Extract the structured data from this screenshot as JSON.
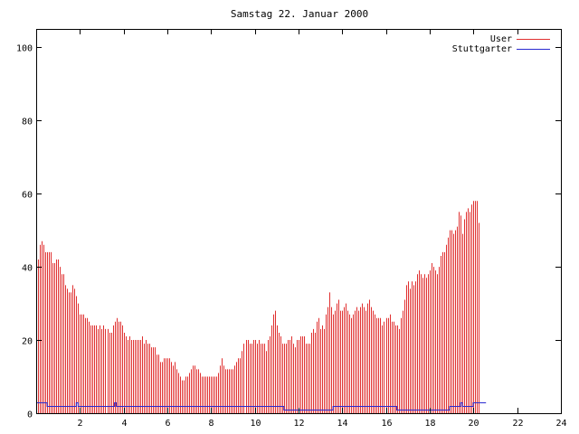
{
  "chart_data": {
    "type": "bar",
    "title": "Samstag 22. Januar 2000",
    "xlabel": "",
    "ylabel": "",
    "xlim": [
      0,
      24
    ],
    "ylim": [
      0,
      105
    ],
    "x_ticks": [
      2,
      4,
      6,
      8,
      10,
      12,
      14,
      16,
      18,
      20,
      22,
      24
    ],
    "y_ticks": [
      0,
      20,
      40,
      60,
      80,
      100
    ],
    "grid": false,
    "legend": "top-right",
    "x_step": 0.0833,
    "series": [
      {
        "name": "User",
        "style": "impulses",
        "color": "#e03030",
        "values": [
          40,
          42,
          46,
          47,
          46,
          44,
          44,
          44,
          44,
          41,
          41,
          42,
          42,
          40,
          38,
          38,
          35,
          34,
          33,
          33,
          35,
          34,
          32,
          30,
          27,
          27,
          27,
          26,
          26,
          25,
          24,
          24,
          24,
          24,
          23,
          24,
          23,
          24,
          23,
          23,
          22,
          22,
          24,
          25,
          26,
          25,
          25,
          24,
          22,
          21,
          20,
          21,
          20,
          20,
          20,
          20,
          20,
          20,
          21,
          19,
          20,
          19,
          19,
          18,
          18,
          18,
          16,
          16,
          14,
          14,
          15,
          15,
          15,
          15,
          14,
          13,
          14,
          12,
          11,
          10,
          9,
          9,
          10,
          10,
          11,
          12,
          13,
          13,
          12,
          12,
          11,
          10,
          10,
          10,
          10,
          10,
          10,
          10,
          10,
          10,
          11,
          13,
          15,
          13,
          12,
          12,
          12,
          12,
          12,
          13,
          14,
          15,
          15,
          17,
          19,
          20,
          20,
          19,
          19,
          20,
          20,
          19,
          20,
          19,
          19,
          19,
          17,
          20,
          21,
          24,
          27,
          28,
          24,
          22,
          21,
          19,
          19,
          19,
          20,
          20,
          21,
          19,
          18,
          20,
          20,
          21,
          21,
          21,
          19,
          19,
          19,
          22,
          23,
          22,
          25,
          26,
          23,
          24,
          23,
          27,
          29,
          33,
          29,
          27,
          28,
          30,
          31,
          28,
          28,
          29,
          30,
          28,
          27,
          26,
          27,
          28,
          29,
          28,
          29,
          30,
          29,
          28,
          30,
          31,
          29,
          28,
          27,
          26,
          26,
          26,
          24,
          25,
          26,
          26,
          27,
          25,
          25,
          24,
          24,
          23,
          26,
          28,
          31,
          35,
          36,
          34,
          36,
          35,
          36,
          38,
          39,
          38,
          37,
          38,
          37,
          38,
          39,
          41,
          40,
          39,
          38,
          40,
          43,
          44,
          44,
          46,
          48,
          50,
          50,
          49,
          50,
          51,
          55,
          54,
          49,
          53,
          55,
          56,
          55,
          57,
          58,
          58,
          58,
          52
        ]
      },
      {
        "name": "Stuttgarter",
        "style": "steps",
        "color": "#2a2ad0",
        "values": [
          3,
          3,
          3,
          3,
          3,
          3,
          2,
          2,
          2,
          2,
          2,
          2,
          2,
          2,
          2,
          2,
          2,
          2,
          2,
          2,
          2,
          2,
          3,
          2,
          2,
          2,
          2,
          2,
          2,
          2,
          2,
          2,
          2,
          2,
          2,
          2,
          2,
          2,
          2,
          2,
          2,
          2,
          2,
          3,
          2,
          2,
          2,
          2,
          2,
          2,
          2,
          2,
          2,
          2,
          2,
          2,
          2,
          2,
          2,
          2,
          2,
          2,
          2,
          2,
          2,
          2,
          2,
          2,
          2,
          2,
          2,
          2,
          2,
          2,
          2,
          2,
          2,
          2,
          2,
          2,
          2,
          2,
          2,
          2,
          2,
          2,
          2,
          2,
          2,
          2,
          2,
          2,
          2,
          2,
          2,
          2,
          2,
          2,
          2,
          2,
          2,
          2,
          2,
          2,
          2,
          2,
          2,
          2,
          2,
          2,
          2,
          2,
          2,
          2,
          2,
          2,
          2,
          2,
          2,
          2,
          2,
          2,
          2,
          2,
          2,
          2,
          2,
          2,
          2,
          2,
          2,
          2,
          2,
          2,
          2,
          2,
          1,
          1,
          1,
          1,
          1,
          1,
          1,
          1,
          1,
          1,
          1,
          1,
          1,
          1,
          1,
          1,
          1,
          1,
          1,
          1,
          1,
          1,
          1,
          1,
          1,
          1,
          1,
          2,
          2,
          2,
          2,
          2,
          2,
          2,
          2,
          2,
          2,
          2,
          2,
          2,
          2,
          2,
          2,
          2,
          2,
          2,
          2,
          2,
          2,
          2,
          2,
          2,
          2,
          2,
          2,
          2,
          2,
          2,
          2,
          2,
          2,
          2,
          1,
          1,
          1,
          1,
          1,
          1,
          1,
          1,
          1,
          1,
          1,
          1,
          1,
          1,
          1,
          1,
          1,
          1,
          1,
          1,
          1,
          1,
          1,
          1,
          1,
          1,
          1,
          1,
          1,
          2,
          2,
          2,
          2,
          2,
          2,
          3,
          2,
          2,
          2,
          2,
          2,
          2,
          3,
          3,
          3,
          3,
          3,
          3,
          3
        ]
      }
    ]
  }
}
